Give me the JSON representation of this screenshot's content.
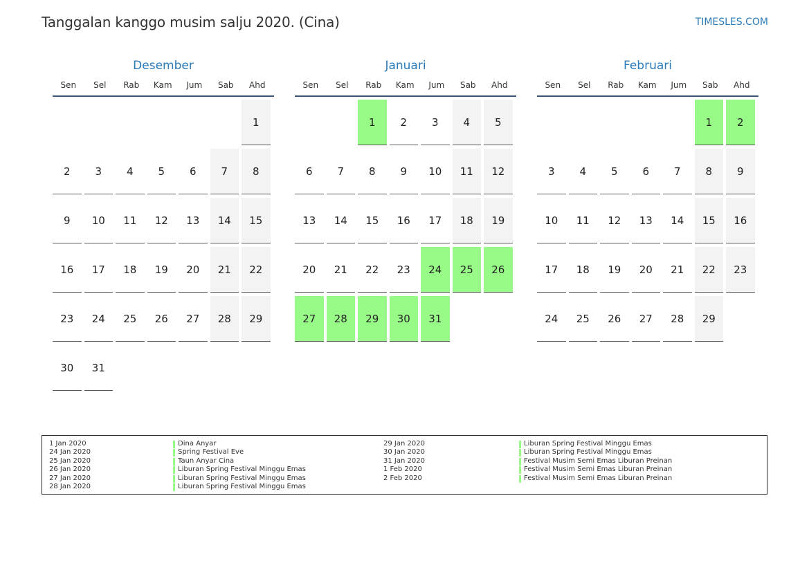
{
  "title": "Tanggalan kanggo musim salju 2020. (Cina)",
  "brand": "TIMESLES.COM",
  "colors": {
    "accent": "#2b7bb9",
    "holiday": "#98fb88",
    "weekend": "#f3f3f3"
  },
  "weekdays": [
    "Sen",
    "Sel",
    "Rab",
    "Kam",
    "Jum",
    "Sab",
    "Ahd"
  ],
  "months": [
    {
      "name": "Desember",
      "start_offset": 6,
      "days": 31,
      "holidays": []
    },
    {
      "name": "Januari",
      "start_offset": 2,
      "days": 31,
      "holidays": [
        1,
        24,
        25,
        26,
        27,
        28,
        29,
        30,
        31
      ]
    },
    {
      "name": "Februari",
      "start_offset": 5,
      "days": 29,
      "holidays": [
        1,
        2
      ]
    }
  ],
  "legend": {
    "left": [
      {
        "date": "1 Jan 2020",
        "name": "Dina Anyar"
      },
      {
        "date": "24 Jan 2020",
        "name": "Spring Festival Eve"
      },
      {
        "date": "25 Jan 2020",
        "name": "Taun Anyar Cina"
      },
      {
        "date": "26 Jan 2020",
        "name": "Liburan Spring Festival Minggu Emas"
      },
      {
        "date": "27 Jan 2020",
        "name": "Liburan Spring Festival Minggu Emas"
      },
      {
        "date": "28 Jan 2020",
        "name": "Liburan Spring Festival Minggu Emas"
      }
    ],
    "right": [
      {
        "date": "29 Jan 2020",
        "name": "Liburan Spring Festival Minggu Emas"
      },
      {
        "date": "30 Jan 2020",
        "name": "Liburan Spring Festival Minggu Emas"
      },
      {
        "date": "31 Jan 2020",
        "name": "Festival Musim Semi Emas Liburan Preinan"
      },
      {
        "date": "1 Feb 2020",
        "name": "Festival Musim Semi Emas Liburan Preinan"
      },
      {
        "date": "2 Feb 2020",
        "name": "Festival Musim Semi Emas Liburan Preinan"
      }
    ]
  }
}
